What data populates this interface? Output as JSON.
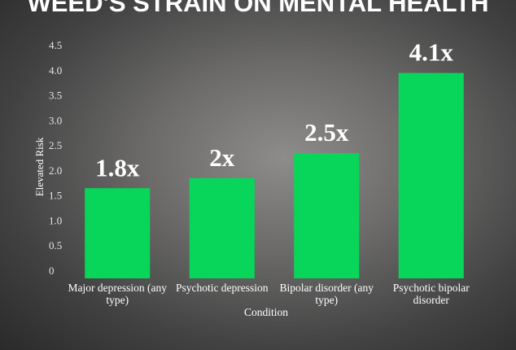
{
  "chart_data": {
    "type": "bar",
    "title": "WEED'S STRAIN ON MENTAL HEALTH",
    "categories": [
      "Major depression (any type)",
      "Psychotic depression",
      "Bipolar disorder (any type)",
      "Psychotic bipolar disorder"
    ],
    "values": [
      1.8,
      2,
      2.5,
      4.1
    ],
    "value_labels": [
      "1.8x",
      "2x",
      "2.5x",
      "4.1x"
    ],
    "color": "#08d65a",
    "x_label": "Condition",
    "y_label": "Elevated Risk",
    "ylim": [
      0,
      4.5
    ],
    "yticks": [
      0,
      0.5,
      {
        "value": 1,
        "label": "1.0"
      },
      1.5,
      {
        "value": 2,
        "label": "2.0"
      },
      2.5,
      {
        "value": 3,
        "label": "3.0"
      },
      3.5,
      {
        "value": 4,
        "label": "4.0"
      },
      4.5
    ],
    "grid": false
  }
}
